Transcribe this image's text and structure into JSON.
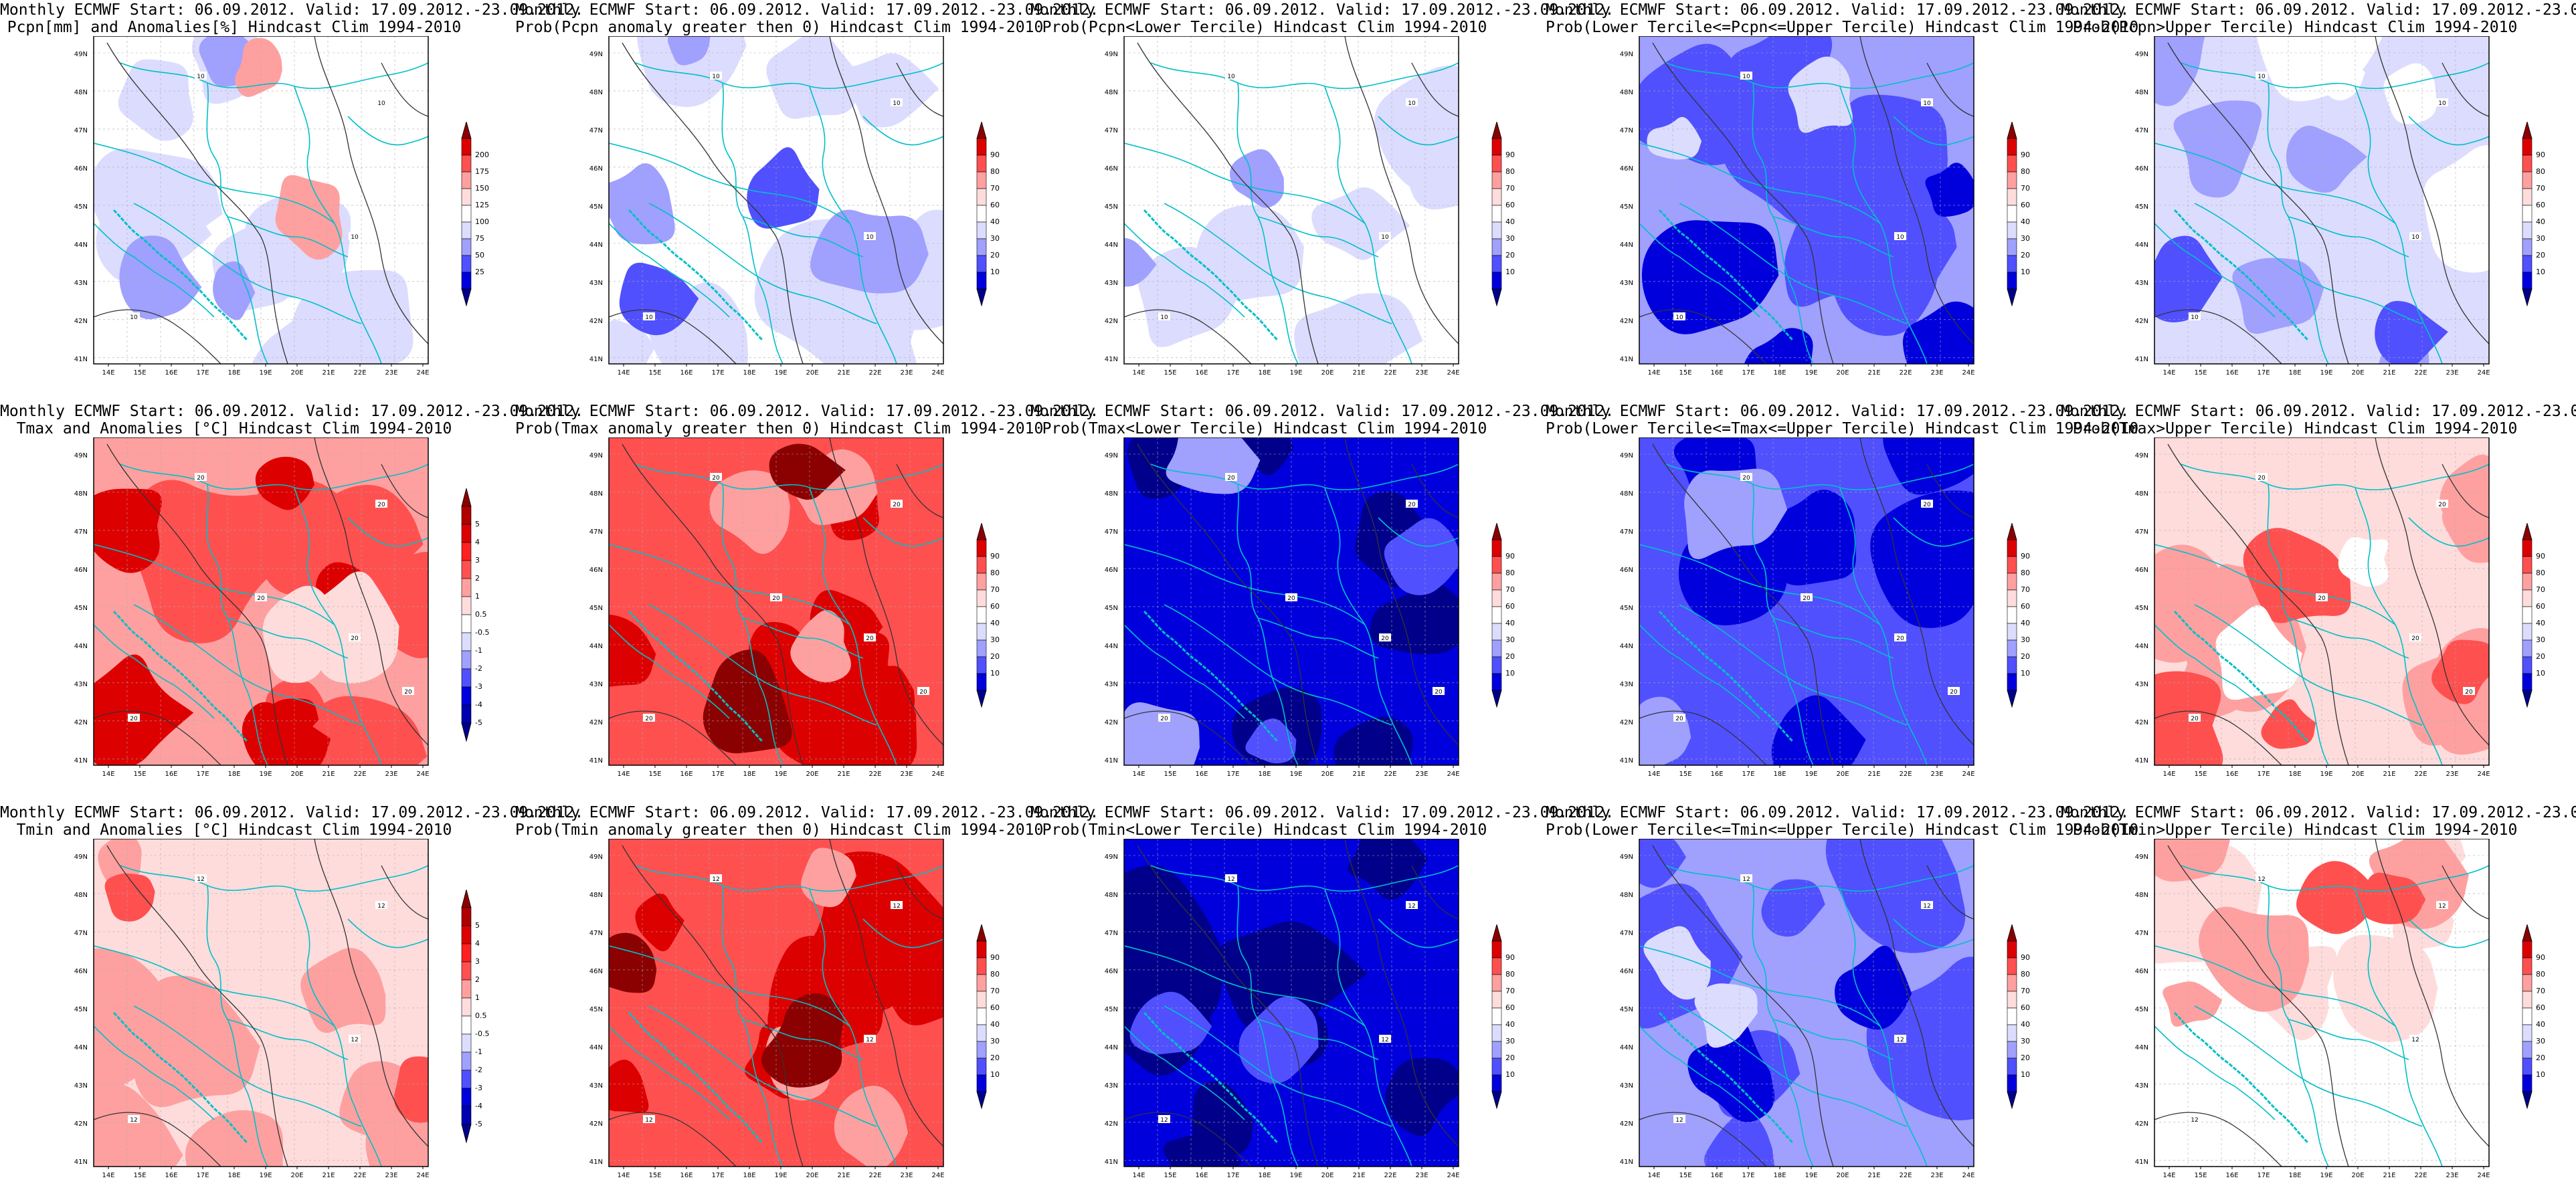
{
  "header_line": "Monthly ECMWF Start: 06.09.2012. Valid: 17.09.2012.-23.09.2012.",
  "panels": [
    {
      "subtitle": "Pcpn[mm] and Anomalies[%] Hindcast Clim 1994-2010",
      "colorbar": "anom_pcpn",
      "pattern": "pcpn_anom",
      "contour_labels": [
        "10",
        "10",
        "10",
        "10"
      ]
    },
    {
      "subtitle": "Prob(Pcpn anomaly greater then 0) Hindcast Clim 1994-2010",
      "colorbar": "prob",
      "pattern": "pcpn_pos",
      "contour_labels": [
        "10",
        "10",
        "10",
        "10"
      ]
    },
    {
      "subtitle": "Prob(Pcpn<Lower Tercile) Hindcast Clim 1994-2010",
      "colorbar": "prob",
      "pattern": "pcpn_low",
      "contour_labels": [
        "10",
        "10",
        "10",
        "10"
      ]
    },
    {
      "subtitle": "Prob(Lower Tercile<=Pcpn<=Upper Tercile) Hindcast Clim 1994-2010",
      "colorbar": "prob",
      "pattern": "pcpn_mid",
      "contour_labels": [
        "10",
        "10",
        "10",
        "10"
      ]
    },
    {
      "subtitle": "Prob(Pcpn>Upper Tercile) Hindcast Clim 1994-2010",
      "colorbar": "prob",
      "pattern": "pcpn_up",
      "contour_labels": [
        "10",
        "10",
        "10",
        "10"
      ]
    },
    {
      "subtitle": "Tmax and Anomalies [°C] Hindcast Clim 1994-2010",
      "colorbar": "anom_temp",
      "pattern": "tmax_anom",
      "contour_labels": [
        "20",
        "20",
        "20",
        "20",
        "20",
        "20"
      ]
    },
    {
      "subtitle": "Prob(Tmax anomaly greater then 0) Hindcast Clim 1994-2010",
      "colorbar": "prob",
      "pattern": "tmax_pos",
      "contour_labels": [
        "20",
        "20",
        "20",
        "20",
        "20",
        "20"
      ]
    },
    {
      "subtitle": "Prob(Tmax<Lower Tercile) Hindcast Clim 1994-2010",
      "colorbar": "prob",
      "pattern": "tmax_low",
      "contour_labels": [
        "20",
        "20",
        "20",
        "20",
        "20",
        "20"
      ]
    },
    {
      "subtitle": "Prob(Lower Tercile<=Tmax<=Upper Tercile) Hindcast Clim 1994-2010",
      "colorbar": "prob",
      "pattern": "tmax_mid",
      "contour_labels": [
        "20",
        "20",
        "20",
        "20",
        "20",
        "20"
      ]
    },
    {
      "subtitle": "Prob(Tmax>Upper Tercile) Hindcast Clim 1994-2010",
      "colorbar": "prob",
      "pattern": "tmax_up",
      "contour_labels": [
        "20",
        "20",
        "20",
        "20",
        "20",
        "20"
      ]
    },
    {
      "subtitle": "Tmin and Anomalies [°C] Hindcast Clim 1994-2010",
      "colorbar": "anom_temp",
      "pattern": "tmin_anom",
      "contour_labels": [
        "12",
        "12",
        "12",
        "12"
      ]
    },
    {
      "subtitle": "Prob(Tmin anomaly greater then 0) Hindcast Clim 1994-2010",
      "colorbar": "prob",
      "pattern": "tmin_pos",
      "contour_labels": [
        "12",
        "12",
        "12",
        "12"
      ]
    },
    {
      "subtitle": "Prob(Tmin<Lower Tercile) Hindcast Clim 1994-2010",
      "colorbar": "prob",
      "pattern": "tmin_low",
      "contour_labels": [
        "12",
        "12",
        "12",
        "12"
      ]
    },
    {
      "subtitle": "Prob(Lower Tercile<=Tmin<=Upper Tercile) Hindcast Clim 1994-2010",
      "colorbar": "prob",
      "pattern": "tmin_mid",
      "contour_labels": [
        "12",
        "12",
        "12",
        "12"
      ]
    },
    {
      "subtitle": "Prob(Tmin>Upper Tercile) Hindcast Clim 1994-2010",
      "colorbar": "prob",
      "pattern": "tmin_up",
      "contour_labels": [
        "12",
        "12",
        "12",
        "12"
      ]
    }
  ],
  "axes": {
    "lon_ticks": [
      "14E",
      "15E",
      "16E",
      "17E",
      "18E",
      "19E",
      "20E",
      "21E",
      "22E",
      "23E",
      "24E"
    ],
    "lat_ticks": [
      "49N",
      "48N",
      "47N",
      "46N",
      "45N",
      "44N",
      "43N",
      "42N",
      "41N"
    ]
  },
  "colorbars": {
    "prob": {
      "labels": [
        "90",
        "80",
        "70",
        "60",
        "40",
        "30",
        "20",
        "10"
      ],
      "colors": [
        "#8b0000",
        "#dd0000",
        "#ff5050",
        "#ffa0a0",
        "#ffdcdc",
        "#ffffff",
        "#dcdcff",
        "#a0a0ff",
        "#5050ff",
        "#0000dd",
        "#00008b"
      ]
    },
    "anom_pcpn": {
      "labels": [
        "200",
        "175",
        "150",
        "125",
        "100",
        "75",
        "50",
        "25"
      ],
      "colors": [
        "#8b0000",
        "#dd0000",
        "#ff5050",
        "#ffa0a0",
        "#ffdcdc",
        "#ffffff",
        "#dcdcff",
        "#a0a0ff",
        "#5050ff",
        "#0000dd",
        "#00008b"
      ]
    },
    "anom_temp": {
      "labels": [
        "5",
        "4",
        "3",
        "2",
        "1",
        "0.5",
        "-0.5",
        "-1",
        "-2",
        "-3",
        "-4",
        "-5"
      ],
      "colors": [
        "#8b0000",
        "#b00000",
        "#dd0000",
        "#ff2020",
        "#ff5050",
        "#ffa0a0",
        "#ffdcdc",
        "#ffffff",
        "#dcdcff",
        "#a0a0ff",
        "#5050ff",
        "#0000dd",
        "#0000b0",
        "#00008b"
      ]
    }
  },
  "palette": {
    "border": "#00c0c8",
    "contour": "#333333",
    "grid": "#aaaaaa"
  }
}
